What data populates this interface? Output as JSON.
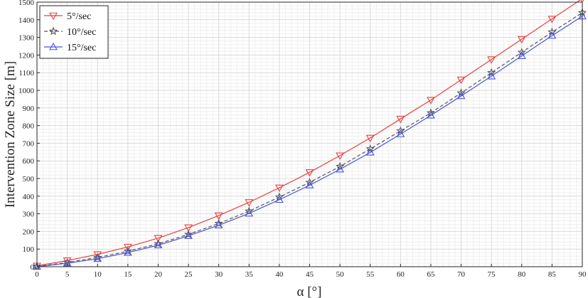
{
  "chart_data": {
    "type": "line",
    "xlabel": "α [°]",
    "ylabel": "Intervention Zone Size [m]",
    "xlim": [
      0,
      90
    ],
    "ylim": [
      0,
      1500
    ],
    "x_ticks": [
      "0",
      "5",
      "10",
      "15",
      "20",
      "25",
      "30",
      "35",
      "40",
      "45",
      "50",
      "55",
      "60",
      "65",
      "70",
      "75",
      "80",
      "85",
      "90"
    ],
    "y_ticks": [
      "0",
      "100",
      "200",
      "300",
      "400",
      "500",
      "600",
      "700",
      "800",
      "900",
      "1000",
      "1100",
      "1200",
      "1300",
      "1400",
      "1500"
    ],
    "grid": true,
    "legend_position": "top-left",
    "x": [
      0,
      5,
      10,
      15,
      20,
      25,
      30,
      35,
      40,
      45,
      50,
      55,
      60,
      65,
      70,
      75,
      80,
      85,
      90
    ],
    "series": [
      {
        "name": "5°/sec",
        "color": "#e8413c",
        "marker": "triangle-down",
        "line": "solid",
        "values": [
          5,
          35,
          70,
          112,
          162,
          222,
          290,
          365,
          448,
          535,
          630,
          730,
          838,
          945,
          1060,
          1175,
          1290,
          1405,
          1520
        ]
      },
      {
        "name": "10°/sec",
        "color": "#555555",
        "marker": "star",
        "line": "dashed",
        "values": [
          2,
          24,
          52,
          88,
          130,
          183,
          245,
          315,
          395,
          478,
          568,
          668,
          770,
          872,
          985,
          1100,
          1215,
          1330,
          1440
        ]
      },
      {
        "name": "15°/sec",
        "color": "#4a55e0",
        "marker": "triangle-up",
        "line": "solid",
        "values": [
          0,
          20,
          45,
          80,
          122,
          175,
          235,
          302,
          380,
          462,
          552,
          648,
          752,
          858,
          968,
          1080,
          1195,
          1310,
          1420
        ]
      }
    ]
  }
}
